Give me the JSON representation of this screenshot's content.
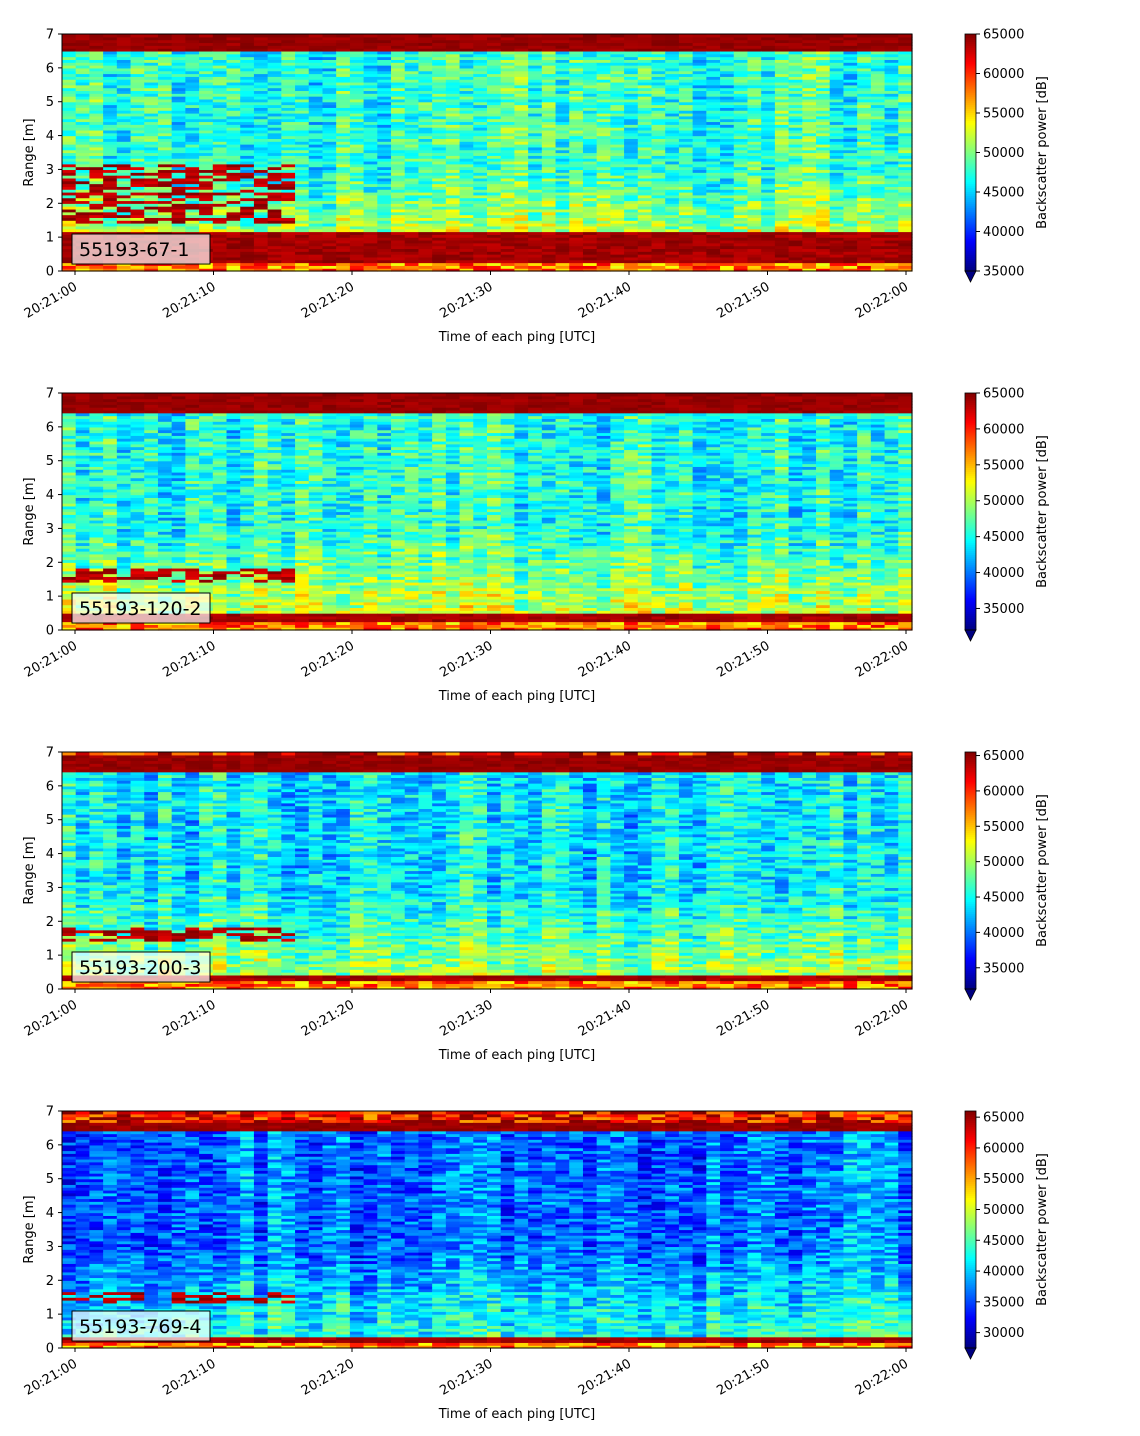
{
  "chart_data": [
    {
      "type": "heatmap",
      "label": "55193-67-1",
      "xlabel": "Time of each ping [UTC]",
      "ylabel": "Range [m]",
      "ylim": [
        0,
        7
      ],
      "yticks": [
        "0",
        "1",
        "2",
        "3",
        "4",
        "5",
        "6",
        "7"
      ],
      "xticks": [
        "20:21:00",
        "20:21:10",
        "20:21:20",
        "20:21:30",
        "20:21:40",
        "20:21:50",
        "20:22:00"
      ],
      "colorbar": {
        "label": "Backscatter power [dB]",
        "vmin": 35000,
        "vmax": 65000,
        "ticks": [
          "35000",
          "40000",
          "45000",
          "50000",
          "55000",
          "60000",
          "65000"
        ],
        "colormap": "jet",
        "extend": "min"
      },
      "features": {
        "bottom_band": [
          0.25,
          1.15
        ],
        "surface_band": [
          6.5,
          7.0
        ],
        "base_level": 0.42,
        "lower_layer": [
          1.4,
          3.2
        ]
      }
    },
    {
      "type": "heatmap",
      "label": "55193-120-2",
      "xlabel": "Time of each ping [UTC]",
      "ylabel": "Range [m]",
      "ylim": [
        0,
        7
      ],
      "yticks": [
        "0",
        "1",
        "2",
        "3",
        "4",
        "5",
        "6",
        "7"
      ],
      "xticks": [
        "20:21:00",
        "20:21:10",
        "20:21:20",
        "20:21:30",
        "20:21:40",
        "20:21:50",
        "20:22:00"
      ],
      "colorbar": {
        "label": "Backscatter power [dB]",
        "vmin": 32000,
        "vmax": 65000,
        "ticks": [
          "35000",
          "40000",
          "45000",
          "50000",
          "55000",
          "60000",
          "65000"
        ],
        "colormap": "jet",
        "extend": "min"
      },
      "features": {
        "bottom_band": [
          0.25,
          0.5
        ],
        "surface_band": [
          6.4,
          7.0
        ],
        "base_level": 0.4,
        "lower_layer": [
          1.4,
          1.8
        ]
      }
    },
    {
      "type": "heatmap",
      "label": "55193-200-3",
      "xlabel": "Time of each ping [UTC]",
      "ylabel": "Range [m]",
      "ylim": [
        0,
        7
      ],
      "yticks": [
        "0",
        "1",
        "2",
        "3",
        "4",
        "5",
        "6",
        "7"
      ],
      "xticks": [
        "20:21:00",
        "20:21:10",
        "20:21:20",
        "20:21:30",
        "20:21:40",
        "20:21:50",
        "20:22:00"
      ],
      "colorbar": {
        "label": "Backscatter power [dB]",
        "vmin": 32000,
        "vmax": 65500,
        "ticks": [
          "35000",
          "40000",
          "45000",
          "50000",
          "55000",
          "60000",
          "65000"
        ],
        "colormap": "jet",
        "extend": "min"
      },
      "features": {
        "bottom_band": [
          0.25,
          0.45
        ],
        "surface_band": [
          6.4,
          6.9
        ],
        "base_level": 0.36,
        "lower_layer": [
          1.4,
          1.8
        ]
      }
    },
    {
      "type": "heatmap",
      "label": "55193-769-4",
      "xlabel": "Time of each ping [UTC]",
      "ylabel": "Range [m]",
      "ylim": [
        0,
        7
      ],
      "yticks": [
        "0",
        "1",
        "2",
        "3",
        "4",
        "5",
        "6",
        "7"
      ],
      "xticks": [
        "20:21:00",
        "20:21:10",
        "20:21:20",
        "20:21:30",
        "20:21:40",
        "20:21:50",
        "20:22:00"
      ],
      "colorbar": {
        "label": "Backscatter power [dB]",
        "vmin": 27500,
        "vmax": 66000,
        "ticks": [
          "30000",
          "35000",
          "40000",
          "45000",
          "50000",
          "55000",
          "60000",
          "65000"
        ],
        "colormap": "jet",
        "extend": "min"
      },
      "features": {
        "bottom_band": [
          0.2,
          0.35
        ],
        "surface_band": [
          6.45,
          6.65
        ],
        "base_level": 0.24,
        "lower_layer": [
          1.3,
          1.7
        ]
      }
    }
  ]
}
